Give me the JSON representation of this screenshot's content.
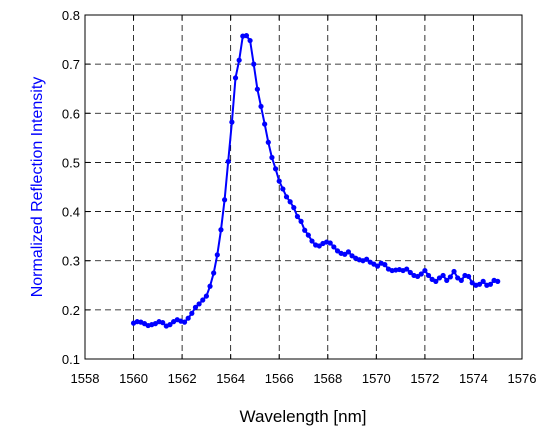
{
  "chart_data": {
    "type": "line",
    "title": "",
    "xlabel": "Wavelength [nm]",
    "ylabel": "Normalized Reflection Intensity",
    "xlim": [
      1558,
      1576
    ],
    "ylim": [
      0.1,
      0.8
    ],
    "x_ticks": [
      "1558",
      "1560",
      "1562",
      "1564",
      "1566",
      "1568",
      "1570",
      "1572",
      "1574",
      "1576"
    ],
    "y_ticks": [
      "0.1",
      "0.2",
      "0.3",
      "0.4",
      "0.5",
      "0.6",
      "0.7",
      "0.8"
    ],
    "grid": true,
    "grid_style": "dashed",
    "series_color": "#0000ff",
    "ylabel_color": "#0000ff",
    "series": [
      {
        "marker": "dot",
        "x": [
          1560.0,
          1560.15,
          1560.3,
          1560.45,
          1560.6,
          1560.75,
          1560.9,
          1561.05,
          1561.2,
          1561.35,
          1561.5,
          1561.65,
          1561.8,
          1561.95,
          1562.1,
          1562.25,
          1562.4,
          1562.55,
          1562.7,
          1562.85,
          1563.0,
          1563.15,
          1563.3,
          1563.45,
          1563.6,
          1563.75,
          1563.9,
          1564.05,
          1564.2,
          1564.35,
          1564.5,
          1564.65,
          1564.8,
          1564.95,
          1565.1,
          1565.25,
          1565.4,
          1565.55,
          1565.7,
          1565.85,
          1566.0,
          1566.15,
          1566.3,
          1566.45,
          1566.6,
          1566.75,
          1566.9,
          1567.05,
          1567.2,
          1567.35,
          1567.5,
          1567.65,
          1567.8,
          1567.95,
          1568.1,
          1568.25,
          1568.4,
          1568.55,
          1568.7,
          1568.85,
          1569.0,
          1569.15,
          1569.3,
          1569.45,
          1569.6,
          1569.75,
          1569.9,
          1570.05,
          1570.2,
          1570.35,
          1570.5,
          1570.65,
          1570.8,
          1570.95,
          1571.1,
          1571.25,
          1571.4,
          1571.55,
          1571.7,
          1571.85,
          1572.0,
          1572.15,
          1572.3,
          1572.45,
          1572.6,
          1572.75,
          1572.9,
          1573.05,
          1573.2,
          1573.35,
          1573.5,
          1573.65,
          1573.8,
          1573.95,
          1574.1,
          1574.25,
          1574.4,
          1574.55,
          1574.7,
          1574.85,
          1575.0
        ],
        "y": [
          0.173,
          0.176,
          0.175,
          0.172,
          0.168,
          0.17,
          0.172,
          0.176,
          0.174,
          0.167,
          0.17,
          0.176,
          0.18,
          0.177,
          0.175,
          0.183,
          0.193,
          0.205,
          0.212,
          0.22,
          0.228,
          0.248,
          0.275,
          0.312,
          0.363,
          0.424,
          0.502,
          0.582,
          0.672,
          0.708,
          0.757,
          0.758,
          0.748,
          0.7,
          0.649,
          0.614,
          0.578,
          0.541,
          0.51,
          0.487,
          0.462,
          0.446,
          0.43,
          0.42,
          0.408,
          0.39,
          0.38,
          0.362,
          0.352,
          0.34,
          0.332,
          0.33,
          0.335,
          0.338,
          0.336,
          0.328,
          0.32,
          0.315,
          0.313,
          0.318,
          0.31,
          0.305,
          0.302,
          0.3,
          0.303,
          0.297,
          0.293,
          0.289,
          0.295,
          0.292,
          0.283,
          0.28,
          0.281,
          0.282,
          0.28,
          0.283,
          0.276,
          0.27,
          0.268,
          0.273,
          0.28,
          0.27,
          0.262,
          0.258,
          0.265,
          0.27,
          0.26,
          0.267,
          0.278,
          0.265,
          0.26,
          0.27,
          0.268,
          0.255,
          0.25,
          0.252,
          0.258,
          0.25,
          0.252,
          0.26,
          0.258
        ]
      }
    ]
  }
}
